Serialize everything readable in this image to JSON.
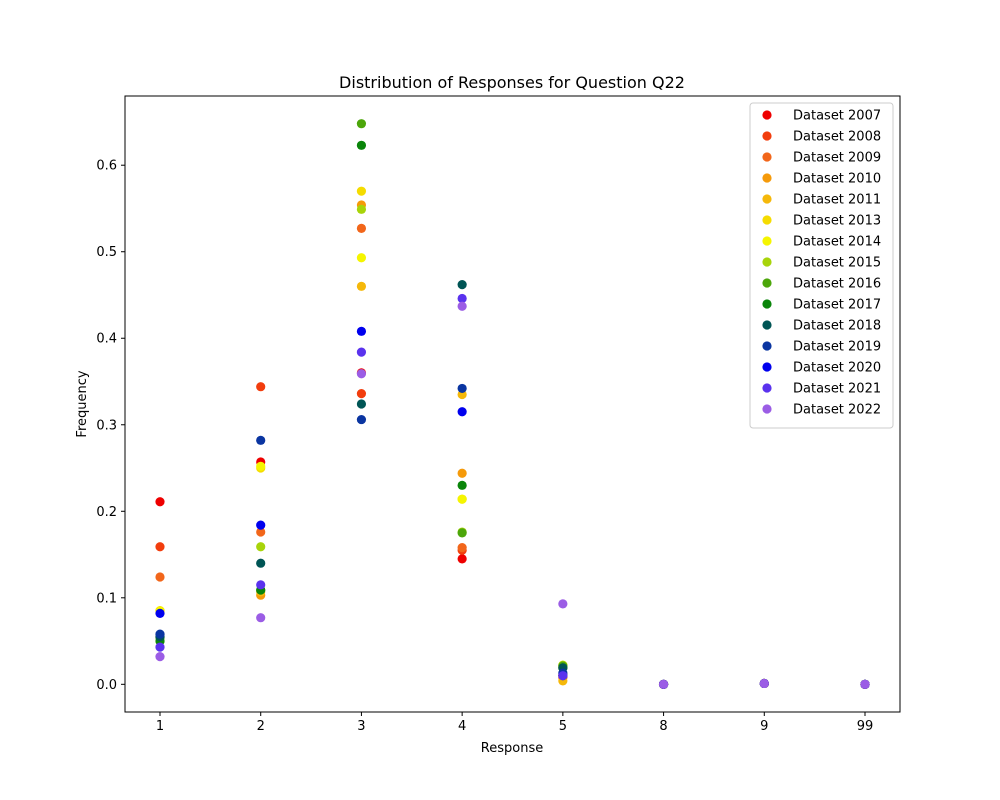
{
  "chart_data": {
    "type": "scatter",
    "title": "Distribution of Responses for Question Q22",
    "xlabel": "Response",
    "ylabel": "Frequency",
    "categories": [
      "1",
      "2",
      "3",
      "4",
      "5",
      "8",
      "9",
      "99"
    ],
    "ylim": [
      -0.032,
      0.68
    ],
    "yticks": [
      0.0,
      0.1,
      0.2,
      0.3,
      0.4,
      0.5,
      0.6
    ],
    "ytick_labels": [
      "0.0",
      "0.1",
      "0.2",
      "0.3",
      "0.4",
      "0.5",
      "0.6"
    ],
    "grid": false,
    "legend_position": "top-right",
    "series": [
      {
        "name": "Dataset 2007",
        "color": "#ee0000",
        "values": [
          0.211,
          0.257,
          0.36,
          0.145,
          0.01,
          0.0,
          0.001,
          0.0
        ]
      },
      {
        "name": "Dataset 2008",
        "color": "#f23d0d",
        "values": [
          0.159,
          0.344,
          0.336,
          0.155,
          0.008,
          0.0,
          0.001,
          0.0
        ]
      },
      {
        "name": "Dataset 2009",
        "color": "#f2661a",
        "values": [
          0.124,
          0.176,
          0.527,
          0.158,
          0.01,
          0.0,
          0.001,
          0.0
        ]
      },
      {
        "name": "Dataset 2010",
        "color": "#f59a0a",
        "values": [
          0.085,
          0.103,
          0.554,
          0.244,
          0.01,
          0.0,
          0.001,
          0.0
        ]
      },
      {
        "name": "Dataset 2011",
        "color": "#f5b80a",
        "values": [
          0.085,
          0.107,
          0.46,
          0.335,
          0.004,
          0.0,
          0.001,
          0.0
        ]
      },
      {
        "name": "Dataset 2013",
        "color": "#f5dc00",
        "values": [
          0.083,
          0.25,
          0.57,
          0.214,
          0.02,
          0.0,
          0.001,
          0.0
        ]
      },
      {
        "name": "Dataset 2014",
        "color": "#f5f500",
        "values": [
          0.085,
          0.252,
          0.493,
          0.214,
          0.022,
          0.0,
          0.001,
          0.0
        ]
      },
      {
        "name": "Dataset 2015",
        "color": "#a8d40a",
        "values": [
          0.05,
          0.159,
          0.549,
          0.176,
          0.022,
          0.0,
          0.001,
          0.0
        ]
      },
      {
        "name": "Dataset 2016",
        "color": "#4ca60a",
        "values": [
          0.054,
          0.109,
          0.648,
          0.175,
          0.021,
          0.0,
          0.001,
          0.0
        ]
      },
      {
        "name": "Dataset 2017",
        "color": "#0a850a",
        "values": [
          0.05,
          0.109,
          0.623,
          0.23,
          0.019,
          0.0,
          0.001,
          0.0
        ]
      },
      {
        "name": "Dataset 2018",
        "color": "#005555",
        "values": [
          0.055,
          0.14,
          0.324,
          0.462,
          0.019,
          0.0,
          0.001,
          0.0
        ]
      },
      {
        "name": "Dataset 2019",
        "color": "#0a35a1",
        "values": [
          0.058,
          0.282,
          0.306,
          0.342,
          0.013,
          0.0,
          0.001,
          0.0
        ]
      },
      {
        "name": "Dataset 2020",
        "color": "#0000ee",
        "values": [
          0.082,
          0.184,
          0.408,
          0.315,
          0.01,
          0.0,
          0.001,
          0.0
        ]
      },
      {
        "name": "Dataset 2021",
        "color": "#5a32ee",
        "values": [
          0.043,
          0.115,
          0.384,
          0.446,
          0.01,
          0.0,
          0.001,
          0.0
        ]
      },
      {
        "name": "Dataset 2022",
        "color": "#9b5de5",
        "values": [
          0.032,
          0.077,
          0.359,
          0.437,
          0.093,
          0.0,
          0.001,
          0.0
        ]
      }
    ]
  }
}
